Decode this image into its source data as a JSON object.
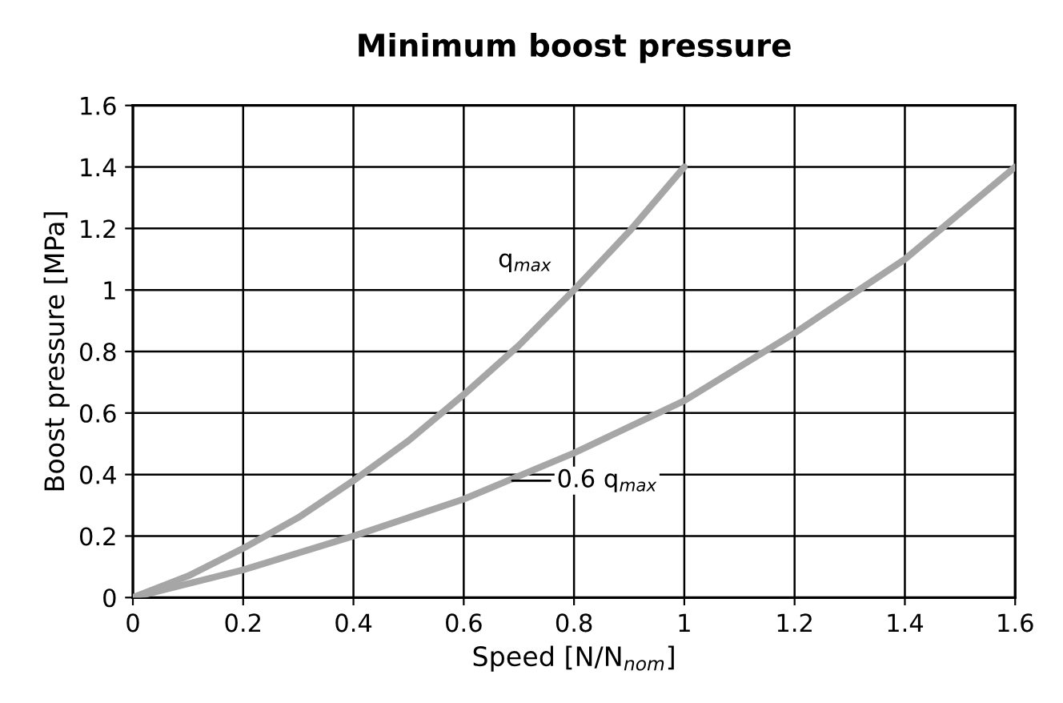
{
  "chart_data": {
    "type": "line",
    "title": "Minimum boost pressure",
    "xlabel": "Speed [N/N$_{nom}$]",
    "ylabel": "Boost pressure [MPa]",
    "series": [
      {
        "color": "#a6a6a6",
        "x": [
          0,
          0.1,
          0.2,
          0.3,
          0.4,
          0.5,
          0.6,
          0.7,
          0.8,
          0.9,
          1.0
        ],
        "values": [
          0,
          0.07,
          0.16,
          0.26,
          0.38,
          0.51,
          0.66,
          0.82,
          1.0,
          1.19,
          1.4
        ]
      },
      {
        "color": "#a6a6a6",
        "x": [
          0,
          0.2,
          0.4,
          0.6,
          0.8,
          1.0,
          1.2,
          1.4,
          1.6
        ],
        "values": [
          0,
          0.09,
          0.2,
          0.32,
          0.47,
          0.64,
          0.86,
          1.1,
          1.4
        ]
      }
    ],
    "annotations": [
      {
        "text": "q$_{max}$",
        "x": 0.8,
        "y": 1.0
      },
      {
        "text": "0.6 q$_{max}$",
        "x": 0.68,
        "y": 0.38
      }
    ],
    "xlim": [
      0,
      1.6
    ],
    "xticks": [
      0,
      0.2,
      0.4,
      0.6,
      0.8,
      1,
      1.2,
      1.4,
      1.6
    ],
    "ylim": [
      0,
      1.6
    ],
    "yticks": [
      0,
      0.2,
      0.4,
      0.6,
      0.8,
      1,
      1.2,
      1.4,
      1.6
    ],
    "grid": true,
    "legend": false,
    "marker": "none",
    "line_style": "solid"
  }
}
